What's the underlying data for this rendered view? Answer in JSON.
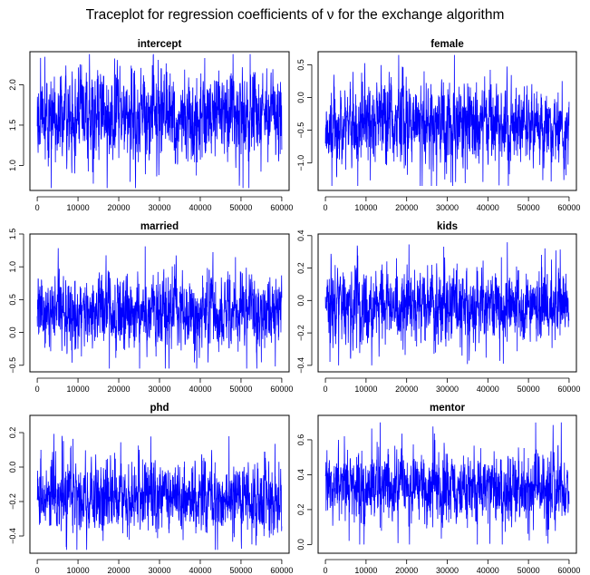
{
  "title": "Traceplot for regression coefficients of ν for the exchange algorithm",
  "line_color": "#0000ff",
  "chart_data": [
    {
      "type": "line",
      "title": "intercept",
      "xlabel": "",
      "ylabel": "",
      "x_range": [
        0,
        60000
      ],
      "xlim": [
        -1800,
        61800
      ],
      "xticks": [
        0,
        10000,
        20000,
        30000,
        40000,
        50000,
        60000
      ],
      "ylim": [
        0.69,
        2.41
      ],
      "yticks": [
        1.0,
        1.5,
        2.0
      ],
      "ytick_labels": [
        "1.0",
        "1.5",
        "2.0"
      ],
      "series": [
        {
          "center": 1.6,
          "spread": 0.27,
          "min": 0.72,
          "max": 2.38
        }
      ]
    },
    {
      "type": "line",
      "title": "female",
      "xlabel": "",
      "ylabel": "",
      "x_range": [
        0,
        60000
      ],
      "xlim": [
        -1800,
        61800
      ],
      "xticks": [
        0,
        10000,
        20000,
        30000,
        40000,
        50000,
        60000
      ],
      "ylim": [
        -1.42,
        0.7
      ],
      "yticks": [
        -1.0,
        -0.5,
        0.0,
        0.5
      ],
      "ytick_labels": [
        "−1.0",
        "−0.5",
        "0.0",
        "0.5"
      ],
      "series": [
        {
          "center": -0.4,
          "spread": 0.3,
          "min": -1.35,
          "max": 0.65
        }
      ]
    },
    {
      "type": "line",
      "title": "married",
      "xlabel": "",
      "ylabel": "",
      "x_range": [
        0,
        60000
      ],
      "xlim": [
        -1800,
        61800
      ],
      "xticks": [
        0,
        10000,
        20000,
        30000,
        40000,
        50000,
        60000
      ],
      "ylim": [
        -0.6,
        1.5
      ],
      "yticks": [
        -0.5,
        0.0,
        0.5,
        1.0,
        1.5
      ],
      "ytick_labels": [
        "−0.5",
        "0.0",
        "0.5",
        "1.0",
        "1.5"
      ],
      "series": [
        {
          "center": 0.32,
          "spread": 0.27,
          "min": -0.55,
          "max": 1.43
        }
      ]
    },
    {
      "type": "line",
      "title": "kids",
      "xlabel": "",
      "ylabel": "",
      "x_range": [
        0,
        60000
      ],
      "xlim": [
        -1800,
        61800
      ],
      "xticks": [
        0,
        10000,
        20000,
        30000,
        40000,
        50000,
        60000
      ],
      "ylim": [
        -0.44,
        0.41
      ],
      "yticks": [
        -0.4,
        -0.2,
        0.0,
        0.2,
        0.4
      ],
      "ytick_labels": [
        "−0.4",
        "−0.2",
        "0.0",
        "0.2",
        "0.4"
      ],
      "series": [
        {
          "center": -0.03,
          "spread": 0.11,
          "min": -0.4,
          "max": 0.38
        }
      ]
    },
    {
      "type": "line",
      "title": "phd",
      "xlabel": "",
      "ylabel": "",
      "x_range": [
        0,
        60000
      ],
      "xlim": [
        -1800,
        61800
      ],
      "xticks": [
        0,
        10000,
        20000,
        30000,
        40000,
        50000,
        60000
      ],
      "ylim": [
        -0.5,
        0.3
      ],
      "yticks": [
        -0.4,
        -0.2,
        0.0,
        0.2
      ],
      "ytick_labels": [
        "−0.4",
        "−0.2",
        "0.0",
        "0.2"
      ],
      "series": [
        {
          "center": -0.18,
          "spread": 0.1,
          "min": -0.48,
          "max": 0.26
        }
      ]
    },
    {
      "type": "line",
      "title": "mentor",
      "xlabel": "",
      "ylabel": "",
      "x_range": [
        0,
        60000
      ],
      "xlim": [
        -1800,
        61800
      ],
      "xticks": [
        0,
        10000,
        20000,
        30000,
        40000,
        50000,
        60000
      ],
      "ylim": [
        -0.05,
        0.74
      ],
      "yticks": [
        0.0,
        0.2,
        0.4,
        0.6
      ],
      "ytick_labels": [
        "0.0",
        "0.2",
        "0.4",
        "0.6"
      ],
      "series": [
        {
          "center": 0.33,
          "spread": 0.1,
          "min": 0.0,
          "max": 0.7
        }
      ]
    }
  ]
}
